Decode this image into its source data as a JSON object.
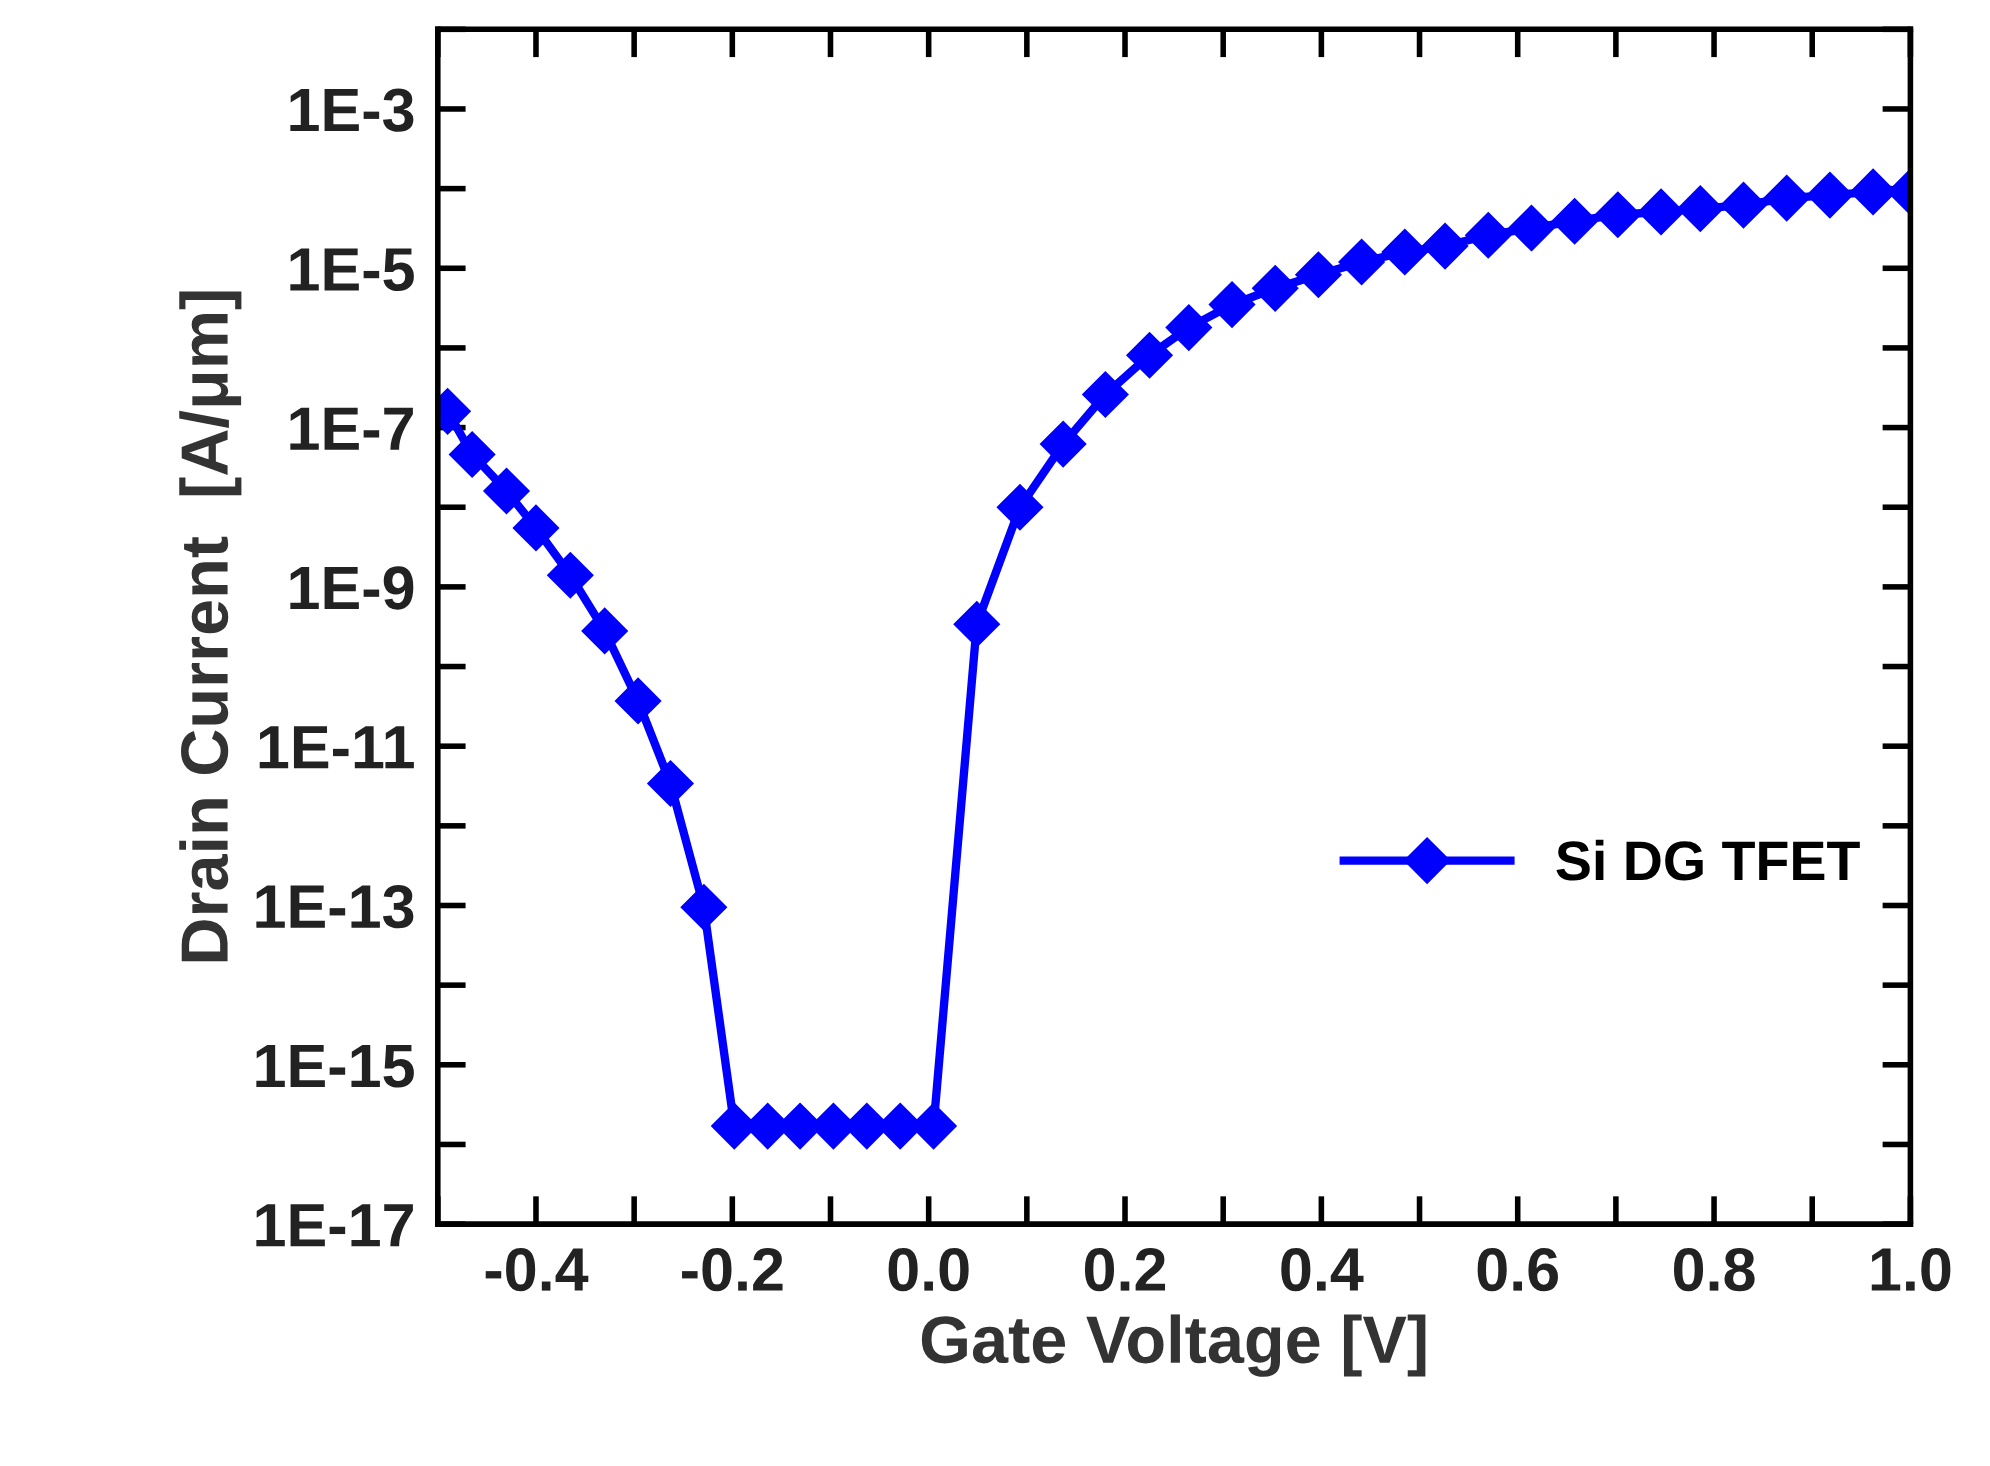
{
  "chart_data": {
    "type": "line",
    "xlabel": "Gate Voltage [V]",
    "ylabel": "Drain Current  [A/μm]",
    "log": "y",
    "xlim": [
      -0.5,
      1.0
    ],
    "ylim": [
      1e-17,
      0.01
    ],
    "xticks": [
      {
        "value": -0.5,
        "label": null
      },
      -0.4,
      {
        "value": -0.3,
        "label": null
      },
      -0.2,
      {
        "value": -0.1,
        "label": null
      },
      {
        "value": 0.0,
        "label": "0.0"
      },
      {
        "value": 0.1,
        "label": null
      },
      0.2,
      {
        "value": 0.3,
        "label": null
      },
      0.4,
      {
        "value": 0.5,
        "label": null
      },
      0.6,
      {
        "value": 0.7,
        "label": null
      },
      0.8,
      {
        "value": 0.9,
        "label": null
      },
      {
        "value": 1.0,
        "label": "1.0"
      }
    ],
    "yticks": [
      {
        "value": 1e-17,
        "label": "1E-17"
      },
      {
        "value": 1e-16,
        "label": null
      },
      {
        "value": 1e-15,
        "label": "1E-15"
      },
      {
        "value": 1e-14,
        "label": null
      },
      {
        "value": 1e-13,
        "label": "1E-13"
      },
      {
        "value": 1e-12,
        "label": null
      },
      {
        "value": 1e-11,
        "label": "1E-11"
      },
      {
        "value": 1e-10,
        "label": null
      },
      {
        "value": 1e-09,
        "label": "1E-9"
      },
      {
        "value": 1e-08,
        "label": null
      },
      {
        "value": 1e-07,
        "label": "1E-7"
      },
      {
        "value": 1e-06,
        "label": null
      },
      {
        "value": 1e-05,
        "label": "1E-5"
      },
      {
        "value": 0.0001,
        "label": null
      },
      {
        "value": 0.001,
        "label": "1E-3"
      },
      {
        "value": 0.01,
        "label": null
      }
    ],
    "grid": false,
    "legend": "right",
    "marker": "diamond",
    "line_style": "solid",
    "series": [
      {
        "name": "Si DG TFET",
        "color": "#0000ff",
        "x": [
          -0.49,
          -0.465,
          -0.43,
          -0.4,
          -0.365,
          -0.33,
          -0.296,
          -0.263,
          -0.229,
          -0.198,
          -0.164,
          -0.131,
          -0.097,
          -0.063,
          -0.029,
          0.005,
          0.049,
          0.093,
          0.137,
          0.18,
          0.225,
          0.265,
          0.309,
          0.353,
          0.397,
          0.441,
          0.485,
          0.526,
          0.57,
          0.614,
          0.658,
          0.702,
          0.746,
          0.786,
          0.83,
          0.874,
          0.918,
          0.962,
          1.0
        ],
        "values": [
          1.6e-07,
          4.6e-08,
          1.6e-08,
          5.5e-09,
          1.4e-09,
          2.8e-10,
          3.7e-11,
          3.4e-12,
          9.5e-14,
          1.7e-16,
          1.7e-16,
          1.7e-16,
          1.7e-16,
          1.7e-16,
          1.7e-16,
          1.7e-16,
          3.4e-10,
          1e-08,
          6.2e-08,
          2.6e-07,
          8.1e-07,
          1.8e-06,
          3.5e-06,
          5.6e-06,
          8.3e-06,
          1.2e-05,
          1.6e-05,
          1.9e-05,
          2.6e-05,
          3.2e-05,
          3.9e-05,
          4.7e-05,
          5.1e-05,
          5.6e-05,
          6.2e-05,
          7.6e-05,
          8.3e-05,
          9.1e-05,
          9.1e-05
        ]
      }
    ]
  }
}
